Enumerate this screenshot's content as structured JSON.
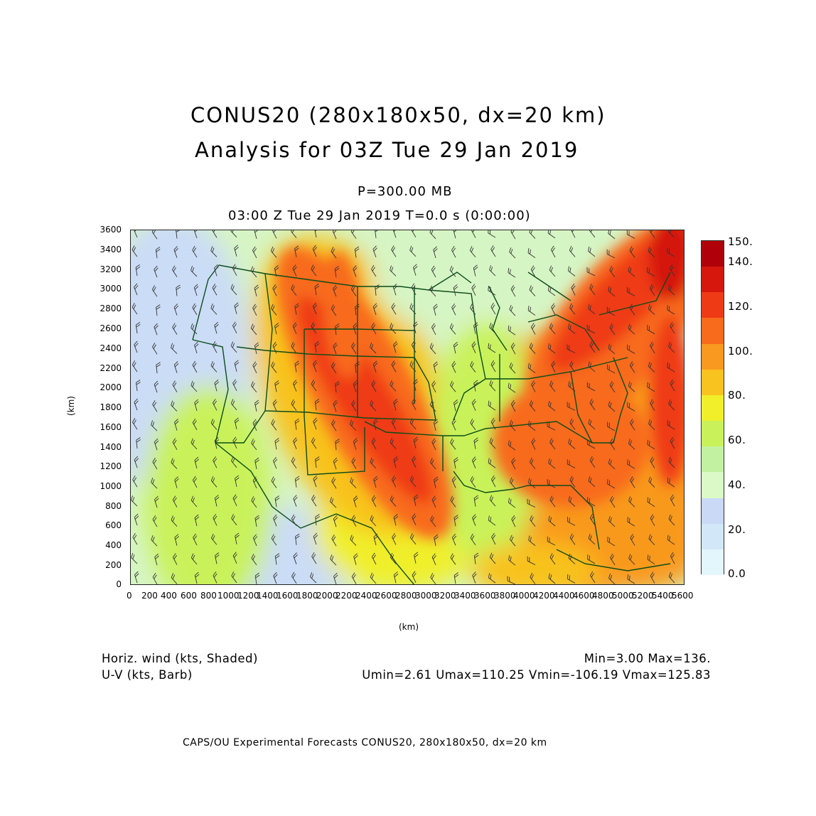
{
  "title_line1": "CONUS20 (280x180x50, dx=20 km)",
  "title_line2": "Analysis for 03Z Tue 29 Jan 2019",
  "level": "P=300.00 MB",
  "valid_time": "03:00 Z Tue 29 Jan 2019    T=0.0 s (0:00:00)",
  "y_axis_label": "(km)",
  "x_axis_label": "(km)",
  "y_ticks": [
    "0",
    "200",
    "400",
    "600",
    "800",
    "1000",
    "1200",
    "1400",
    "1600",
    "1800",
    "2000",
    "2200",
    "2400",
    "2600",
    "2800",
    "3000",
    "3200",
    "3400",
    "3600"
  ],
  "x_ticks": [
    "0",
    "200",
    "400",
    "600",
    "800",
    "1000",
    "1200",
    "1400",
    "1600",
    "1800",
    "2000",
    "2200",
    "2400",
    "2600",
    "2800",
    "3000",
    "3200",
    "3400",
    "3600",
    "3800",
    "4000",
    "4200",
    "4400",
    "4600",
    "4800",
    "5000",
    "5200",
    "5400",
    "5600"
  ],
  "colorbar": {
    "labels": [
      "150.",
      "140.",
      "120.",
      "100.",
      "80.",
      "60.",
      "40.",
      "20.",
      "0.0"
    ],
    "colors": [
      "#b0000a",
      "#d5170d",
      "#ef3a16",
      "#f86a1c",
      "#f9991f",
      "#f8c21f",
      "#f0ef2a",
      "#c9f25a",
      "#c2f2a1",
      "#daf9c7",
      "#c9d9f6",
      "#d2e8f8",
      "#e2f6fb"
    ]
  },
  "legend": {
    "field1": "Horiz. wind (kts, Shaded)",
    "field2": "U-V (kts, Barb)",
    "minmax": "Min=3.00 Max=136.",
    "uv_stats": "Umin=2.61 Umax=110.25 Vmin=-106.19 Vmax=125.83"
  },
  "footer": "CAPS/OU Experimental Forecasts   CONUS20, 280x180x50, dx=20 km"
}
